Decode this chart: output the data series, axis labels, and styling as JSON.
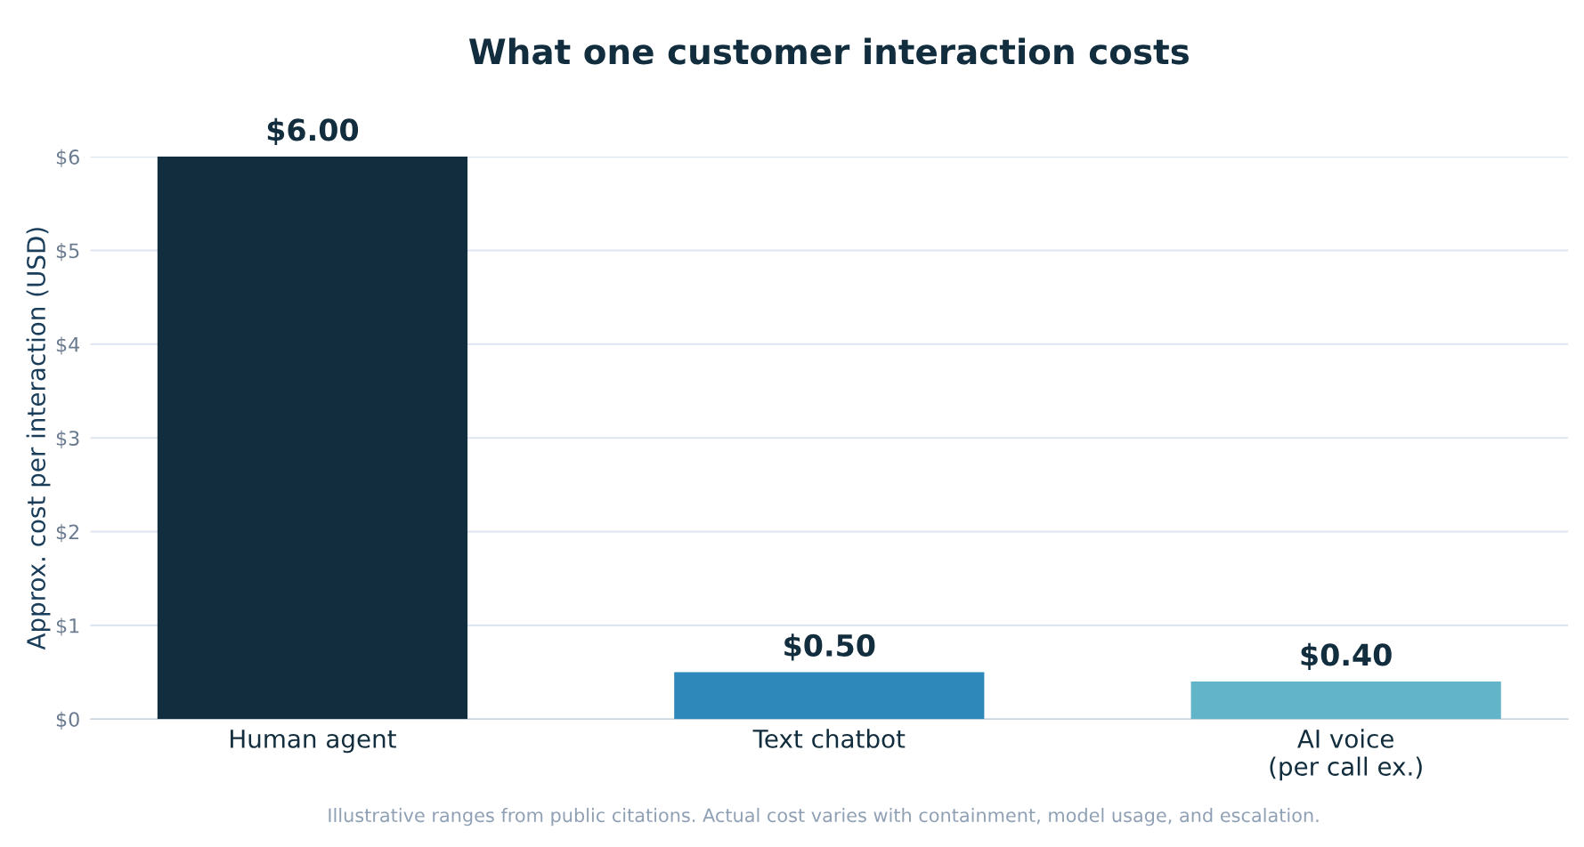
{
  "chart_data": {
    "type": "bar",
    "title": "What one customer interaction costs",
    "ylabel": "Approx. cost per interaction (USD)",
    "categories": [
      "Human agent",
      "Text chatbot",
      "AI voice\n(per call ex.)"
    ],
    "values": [
      6.0,
      0.5,
      0.4
    ],
    "colors": [
      "#122d3d",
      "#2e88b9",
      "#62b4c9"
    ],
    "value_labels": [
      "$6.00",
      "$0.50",
      "$0.40"
    ],
    "ylim": [
      0,
      6
    ],
    "yticks": [
      {
        "value": 0,
        "label": "$0"
      },
      {
        "value": 1,
        "label": "$1"
      },
      {
        "value": 2,
        "label": "$2"
      },
      {
        "value": 3,
        "label": "$3"
      },
      {
        "value": 4,
        "label": "$4"
      },
      {
        "value": 5,
        "label": "$5"
      },
      {
        "value": 6,
        "label": "$6"
      }
    ],
    "grid": "y",
    "annotations": [
      "Illustrative ranges from public citations. Actual cost varies with containment, model usage, and escalation."
    ]
  }
}
